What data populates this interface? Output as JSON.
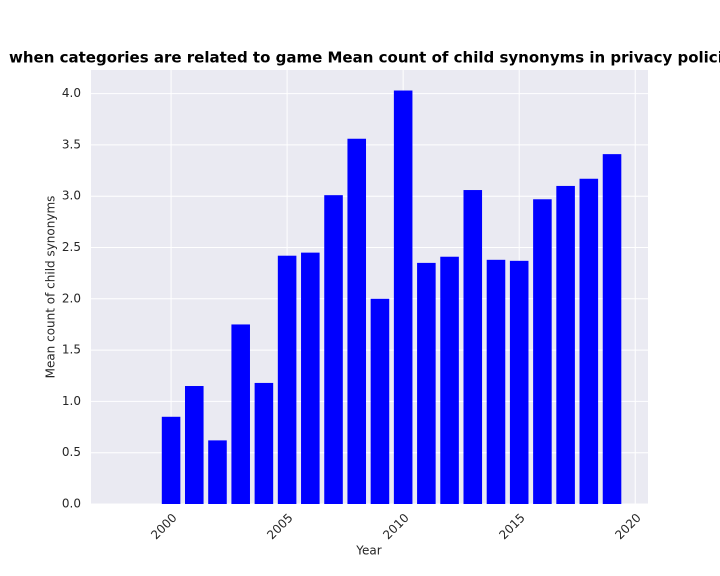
{
  "chart_data": {
    "type": "bar",
    "title": "when categories are related to game Mean count of child synonyms in privacy policies by Yea",
    "x_label": "Year",
    "y_label": "Mean count of child synonyms",
    "x": [
      2000,
      2001,
      2002,
      2003,
      2004,
      2005,
      2006,
      2007,
      2008,
      2009,
      2010,
      2011,
      2012,
      2013,
      2014,
      2015,
      2016,
      2017,
      2018,
      2019
    ],
    "values": [
      0.85,
      1.15,
      0.62,
      1.75,
      1.18,
      2.42,
      2.45,
      3.01,
      3.56,
      2.0,
      4.03,
      2.35,
      2.41,
      3.06,
      2.38,
      2.37,
      2.97,
      3.1,
      3.17,
      3.41
    ],
    "color": "#0000ff",
    "bar_width": 0.8,
    "xlim": [
      1996.55,
      2020.55
    ],
    "xticks": [
      2000,
      2005,
      2010,
      2015,
      2020
    ],
    "ylim": [
      0,
      4.23
    ],
    "yticks": [
      {
        "value": 0,
        "label": "0.0"
      },
      0.5,
      {
        "value": 1,
        "label": "1.0"
      },
      1.5,
      {
        "value": 2,
        "label": "2.0"
      },
      2.5,
      {
        "value": 3,
        "label": "3.0"
      },
      3.5,
      {
        "value": 4,
        "label": "4.0"
      }
    ],
    "grid": true
  }
}
